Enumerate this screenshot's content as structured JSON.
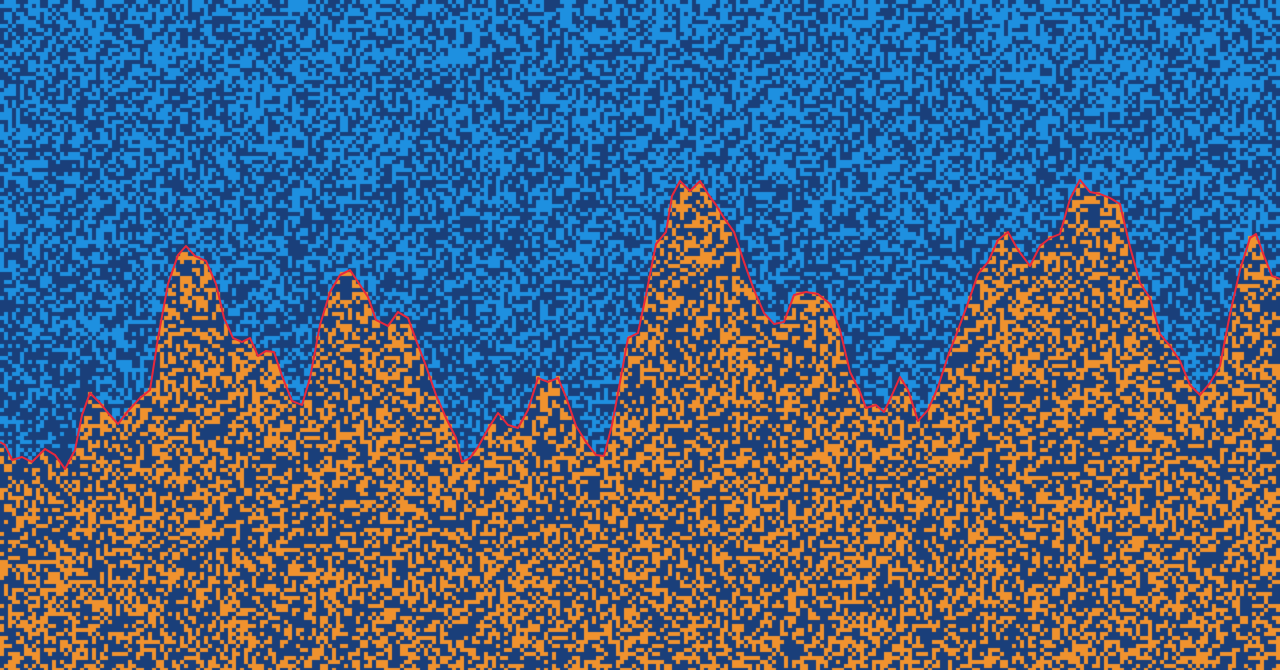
{
  "colors": {
    "background": "#1a3f7a",
    "sky_speckle": "#1e90e0",
    "ground_speckle": "#f0922e",
    "ridge_line": "#e8283c"
  },
  "profile": [
    [
      0,
      442
    ],
    [
      5,
      445
    ],
    [
      12,
      460
    ],
    [
      22,
      457
    ],
    [
      32,
      462
    ],
    [
      45,
      449
    ],
    [
      55,
      455
    ],
    [
      65,
      469
    ],
    [
      75,
      450
    ],
    [
      82,
      415
    ],
    [
      90,
      393
    ],
    [
      100,
      403
    ],
    [
      108,
      413
    ],
    [
      118,
      424
    ],
    [
      128,
      411
    ],
    [
      140,
      398
    ],
    [
      150,
      390
    ],
    [
      158,
      338
    ],
    [
      168,
      284
    ],
    [
      178,
      255
    ],
    [
      186,
      246
    ],
    [
      195,
      256
    ],
    [
      206,
      261
    ],
    [
      216,
      284
    ],
    [
      224,
      318
    ],
    [
      233,
      338
    ],
    [
      242,
      342
    ],
    [
      250,
      338
    ],
    [
      258,
      356
    ],
    [
      266,
      351
    ],
    [
      274,
      352
    ],
    [
      282,
      376
    ],
    [
      292,
      401
    ],
    [
      302,
      405
    ],
    [
      310,
      378
    ],
    [
      320,
      325
    ],
    [
      330,
      292
    ],
    [
      340,
      275
    ],
    [
      350,
      270
    ],
    [
      358,
      282
    ],
    [
      368,
      297
    ],
    [
      376,
      320
    ],
    [
      388,
      326
    ],
    [
      398,
      312
    ],
    [
      408,
      318
    ],
    [
      416,
      340
    ],
    [
      426,
      366
    ],
    [
      436,
      395
    ],
    [
      446,
      418
    ],
    [
      456,
      438
    ],
    [
      462,
      462
    ],
    [
      470,
      458
    ],
    [
      478,
      447
    ],
    [
      488,
      429
    ],
    [
      498,
      413
    ],
    [
      508,
      425
    ],
    [
      518,
      428
    ],
    [
      528,
      410
    ],
    [
      538,
      378
    ],
    [
      548,
      382
    ],
    [
      558,
      378
    ],
    [
      566,
      397
    ],
    [
      576,
      426
    ],
    [
      586,
      442
    ],
    [
      596,
      455
    ],
    [
      604,
      456
    ],
    [
      612,
      425
    ],
    [
      620,
      382
    ],
    [
      628,
      338
    ],
    [
      638,
      333
    ],
    [
      646,
      295
    ],
    [
      656,
      244
    ],
    [
      666,
      232
    ],
    [
      672,
      196
    ],
    [
      680,
      181
    ],
    [
      690,
      191
    ],
    [
      700,
      181
    ],
    [
      708,
      194
    ],
    [
      716,
      205
    ],
    [
      724,
      218
    ],
    [
      734,
      232
    ],
    [
      744,
      262
    ],
    [
      754,
      290
    ],
    [
      764,
      313
    ],
    [
      774,
      324
    ],
    [
      784,
      322
    ],
    [
      794,
      295
    ],
    [
      806,
      292
    ],
    [
      818,
      294
    ],
    [
      830,
      304
    ],
    [
      840,
      330
    ],
    [
      850,
      372
    ],
    [
      860,
      392
    ],
    [
      866,
      408
    ],
    [
      876,
      405
    ],
    [
      884,
      412
    ],
    [
      892,
      395
    ],
    [
      900,
      377
    ],
    [
      908,
      390
    ],
    [
      918,
      421
    ],
    [
      928,
      410
    ],
    [
      938,
      387
    ],
    [
      948,
      356
    ],
    [
      958,
      330
    ],
    [
      968,
      303
    ],
    [
      978,
      274
    ],
    [
      988,
      262
    ],
    [
      998,
      240
    ],
    [
      1008,
      232
    ],
    [
      1018,
      250
    ],
    [
      1030,
      266
    ],
    [
      1040,
      246
    ],
    [
      1050,
      238
    ],
    [
      1060,
      234
    ],
    [
      1070,
      199
    ],
    [
      1080,
      180
    ],
    [
      1090,
      192
    ],
    [
      1100,
      194
    ],
    [
      1110,
      198
    ],
    [
      1120,
      204
    ],
    [
      1130,
      247
    ],
    [
      1140,
      283
    ],
    [
      1150,
      298
    ],
    [
      1160,
      334
    ],
    [
      1170,
      346
    ],
    [
      1180,
      361
    ],
    [
      1190,
      385
    ],
    [
      1200,
      395
    ],
    [
      1210,
      383
    ],
    [
      1220,
      366
    ],
    [
      1230,
      314
    ],
    [
      1240,
      270
    ],
    [
      1250,
      238
    ],
    [
      1256,
      234
    ],
    [
      1264,
      256
    ],
    [
      1272,
      276
    ],
    [
      1280,
      279
    ]
  ]
}
